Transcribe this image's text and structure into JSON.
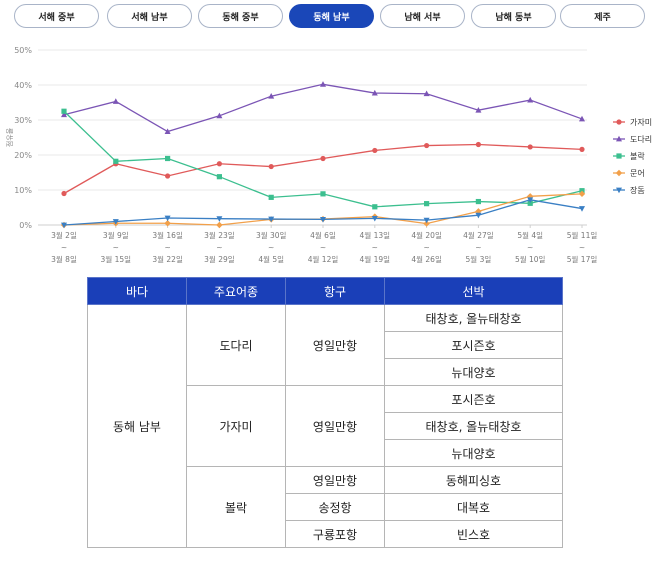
{
  "tabs": [
    {
      "label": "서해 중부",
      "active": false
    },
    {
      "label": "서해 남부",
      "active": false
    },
    {
      "label": "동해 중부",
      "active": false
    },
    {
      "label": "동해 남부",
      "active": true
    },
    {
      "label": "남해 서부",
      "active": false
    },
    {
      "label": "남해 동부",
      "active": false
    },
    {
      "label": "제주",
      "active": false
    }
  ],
  "chart_data": {
    "type": "line",
    "ylabel": "점유율",
    "ylim": [
      0,
      50
    ],
    "yticks": [
      "0%",
      "10%",
      "20%",
      "30%",
      "40%",
      "50%"
    ],
    "categories": [
      [
        "3월 2일",
        "~",
        "3월 8일"
      ],
      [
        "3월 9일",
        "~",
        "3월 15일"
      ],
      [
        "3월 16일",
        "~",
        "3월 22일"
      ],
      [
        "3월 23일",
        "~",
        "3월 29일"
      ],
      [
        "3월 30일",
        "~",
        "4월 5일"
      ],
      [
        "4월 6일",
        "~",
        "4월 12일"
      ],
      [
        "4월 13일",
        "~",
        "4월 19일"
      ],
      [
        "4월 20일",
        "~",
        "4월 26일"
      ],
      [
        "4월 27일",
        "~",
        "5월 3일"
      ],
      [
        "5월 4일",
        "~",
        "5월 10일"
      ],
      [
        "5월 11일",
        "~",
        "5월 17일"
      ]
    ],
    "grid": true,
    "legend_position": "right",
    "series": [
      {
        "name": "가자미",
        "color": "#e05a5a",
        "marker": "circle",
        "values": [
          9,
          17.5,
          14,
          17.5,
          16.7,
          19,
          21.3,
          22.7,
          23,
          22.3,
          21.6
        ]
      },
      {
        "name": "도다리",
        "color": "#7b55b5",
        "marker": "tri-up",
        "values": [
          31.5,
          35.3,
          26.7,
          31.2,
          36.8,
          40.2,
          37.7,
          37.5,
          32.8,
          35.7,
          30.3
        ]
      },
      {
        "name": "볼락",
        "color": "#3cbf8f",
        "marker": "square",
        "values": [
          32.5,
          18.2,
          19,
          13.8,
          7.9,
          8.9,
          5.2,
          6.1,
          6.7,
          6.2,
          9.8
        ]
      },
      {
        "name": "문어",
        "color": "#f2a04a",
        "marker": "diamond",
        "values": [
          0,
          0.5,
          0.5,
          0,
          1.6,
          1.7,
          2.4,
          0.4,
          3.9,
          8.2,
          8.9
        ]
      },
      {
        "name": "장돔",
        "color": "#3a7fc4",
        "marker": "tri-down",
        "values": [
          0,
          1,
          2,
          1.8,
          1.7,
          1.6,
          1.9,
          1.4,
          2.8,
          7.2,
          4.7
        ]
      }
    ]
  },
  "table": {
    "headers": [
      "바다",
      "주요어종",
      "항구",
      "선박"
    ],
    "sea": "동해 남부",
    "species": [
      "도다리",
      "가자미",
      "볼락"
    ],
    "ports": [
      "영일만항",
      "영일만항",
      "영일만항",
      "송정항",
      "구룡포항"
    ],
    "vessels": [
      "태창호, 올뉴태창호",
      "포시즌호",
      "뉴대양호",
      "포시즌호",
      "태창호, 올뉴태창호",
      "뉴대양호",
      "동해피싱호",
      "대복호",
      "빈스호"
    ]
  }
}
